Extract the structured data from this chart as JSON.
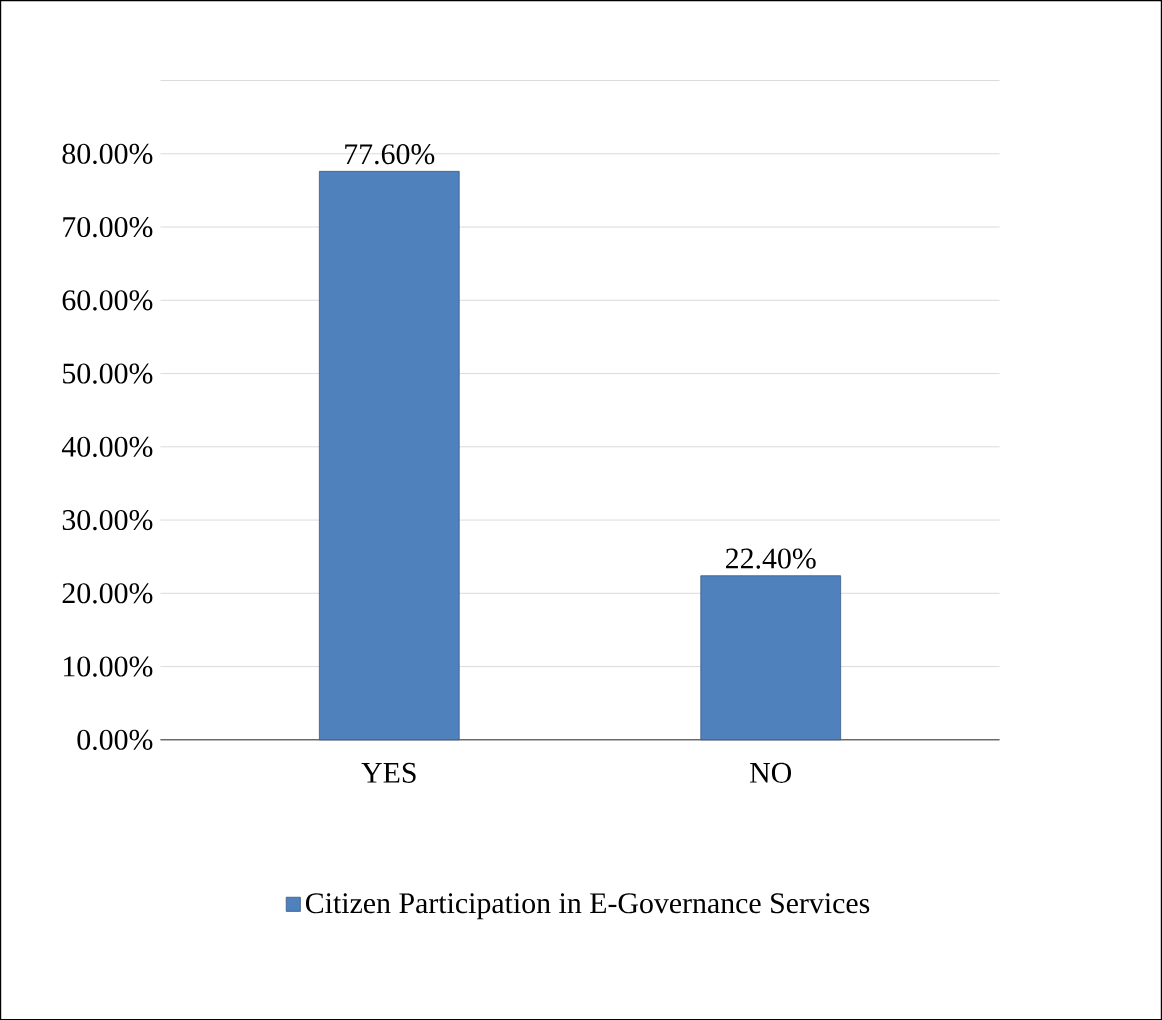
{
  "chart_data": {
    "type": "bar",
    "categories": [
      "YES",
      "NO"
    ],
    "series": [
      {
        "name": "Citizen Participation in E-Governance Services",
        "color": "#4f81bd",
        "values": [
          77.6,
          22.4
        ],
        "value_labels": [
          "77.60%",
          "22.40%"
        ]
      }
    ],
    "ylim": [
      0,
      90
    ],
    "yticks": [
      {
        "value": 0,
        "label": "0.00%"
      },
      {
        "value": 10,
        "label": "10.00%"
      },
      {
        "value": 20,
        "label": "20.00%"
      },
      {
        "value": 30,
        "label": "30.00%"
      },
      {
        "value": 40,
        "label": "40.00%"
      },
      {
        "value": 50,
        "label": "50.00%"
      },
      {
        "value": 60,
        "label": "60.00%"
      },
      {
        "value": 70,
        "label": "70.00%"
      },
      {
        "value": 80,
        "label": "80.00%"
      },
      {
        "value": 90,
        "label": null
      }
    ],
    "grid": "y",
    "legend": "bottom"
  }
}
